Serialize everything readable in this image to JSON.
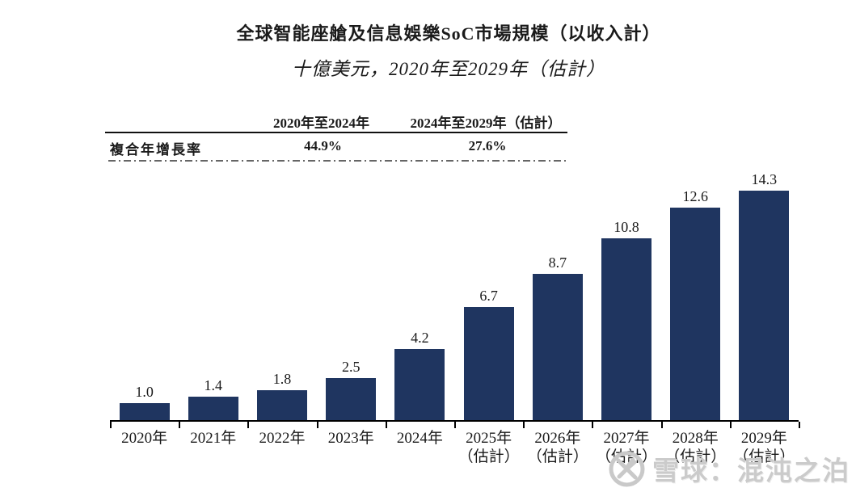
{
  "title": "全球智能座艙及信息娛樂SoC市場規模（以收入計）",
  "subtitle": "十億美元，2020年至2029年（估計）",
  "cagr_table": {
    "col1_header": "2020年至2024年",
    "col2_header": "2024年至2029年（估計）",
    "row_label": "複合年增長率",
    "col1_value": "44.9%",
    "col2_value": "27.6%"
  },
  "watermark": {
    "icon": "snowball-logo",
    "text": "雪球：混沌之泊"
  },
  "colors": {
    "bar": "#1f3560",
    "axis": "#000000",
    "text": "#1a1a1a",
    "watermark": "#cbcbcb"
  },
  "chart_data": {
    "type": "bar",
    "title": "全球智能座艙及信息娛樂SoC市場規模（以收入計）",
    "subtitle": "十億美元，2020年至2029年（估計）",
    "unit": "十億美元",
    "categories": [
      "2020年",
      "2021年",
      "2022年",
      "2023年",
      "2024年",
      "2025年（估計）",
      "2026年（估計）",
      "2027年（估計）",
      "2028年（估計）",
      "2029年（估計）"
    ],
    "category_line1": [
      "2020年",
      "2021年",
      "2022年",
      "2023年",
      "2024年",
      "2025年",
      "2026年",
      "2027年",
      "2028年",
      "2029年"
    ],
    "category_line2": [
      "",
      "",
      "",
      "",
      "",
      "（估計）",
      "（估計）",
      "（估計）",
      "（估計）",
      "（估計）"
    ],
    "values": [
      1.0,
      1.4,
      1.8,
      2.5,
      4.2,
      6.7,
      8.7,
      10.8,
      12.6,
      14.3
    ],
    "value_labels": [
      "1.0",
      "1.4",
      "1.8",
      "2.5",
      "4.2",
      "6.7",
      "8.7",
      "10.8",
      "12.6",
      "14.3"
    ],
    "ylim": [
      0,
      15
    ],
    "grid": false,
    "legend": false,
    "bar_color": "#1f3560",
    "annotations": {
      "cagr_2020_2024": "44.9%",
      "cagr_2024_2029": "27.6%"
    }
  }
}
